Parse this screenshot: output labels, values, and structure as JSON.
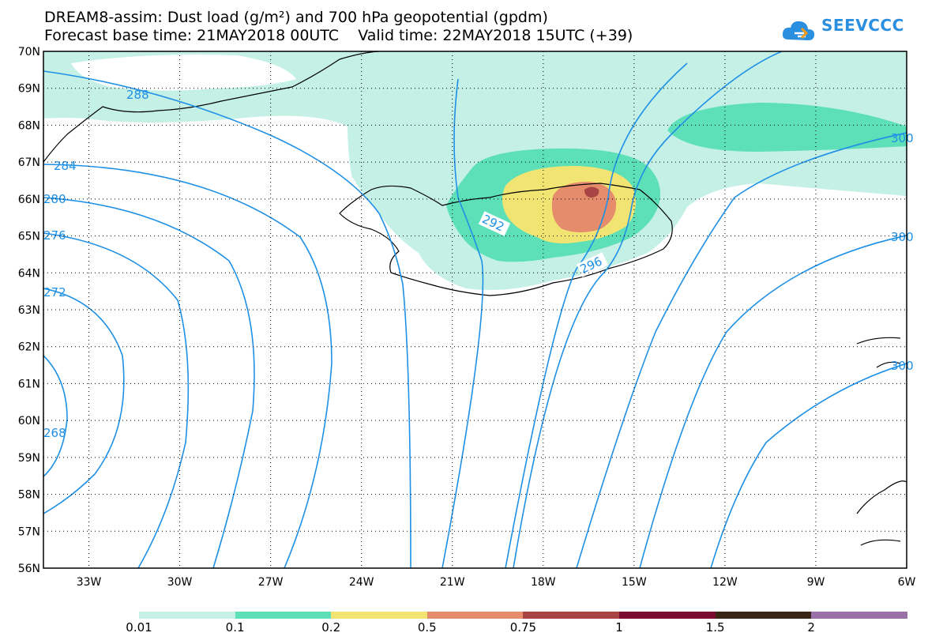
{
  "header": {
    "title_line1": "DREAM8-assim: Dust load (g/m²) and 700 hPa geopotential (gpdm)",
    "title_line2": "Forecast base time: 21MAY2018 00UTC    Valid time: 22MAY2018 15UTC (+39)",
    "logo_text": "SEEVCCC"
  },
  "map": {
    "lon_range": [
      -34.5,
      -6
    ],
    "lat_range": [
      56,
      70
    ],
    "lat_ticks": [
      "70N",
      "69N",
      "68N",
      "67N",
      "66N",
      "65N",
      "64N",
      "63N",
      "62N",
      "61N",
      "60N",
      "59N",
      "58N",
      "57N",
      "56N"
    ],
    "lon_ticks": [
      "33W",
      "30W",
      "27W",
      "24W",
      "21W",
      "18W",
      "15W",
      "12W",
      "9W",
      "6W"
    ],
    "grid": "dotted",
    "contour_color": "#1e90e6",
    "contour_labels": [
      "288",
      "284",
      "280",
      "276",
      "272",
      "268",
      "292",
      "296",
      "300",
      "300",
      "300"
    ]
  },
  "colorbar": {
    "labels": [
      "0.01",
      "0.1",
      "0.2",
      "0.5",
      "0.75",
      "1",
      "1.5",
      "2"
    ],
    "colors": [
      "#c4f0e6",
      "#5ddfb8",
      "#f2e472",
      "#e48c6c",
      "#a84444",
      "#7a0a30",
      "#3a2414",
      "#9a70a8"
    ]
  }
}
